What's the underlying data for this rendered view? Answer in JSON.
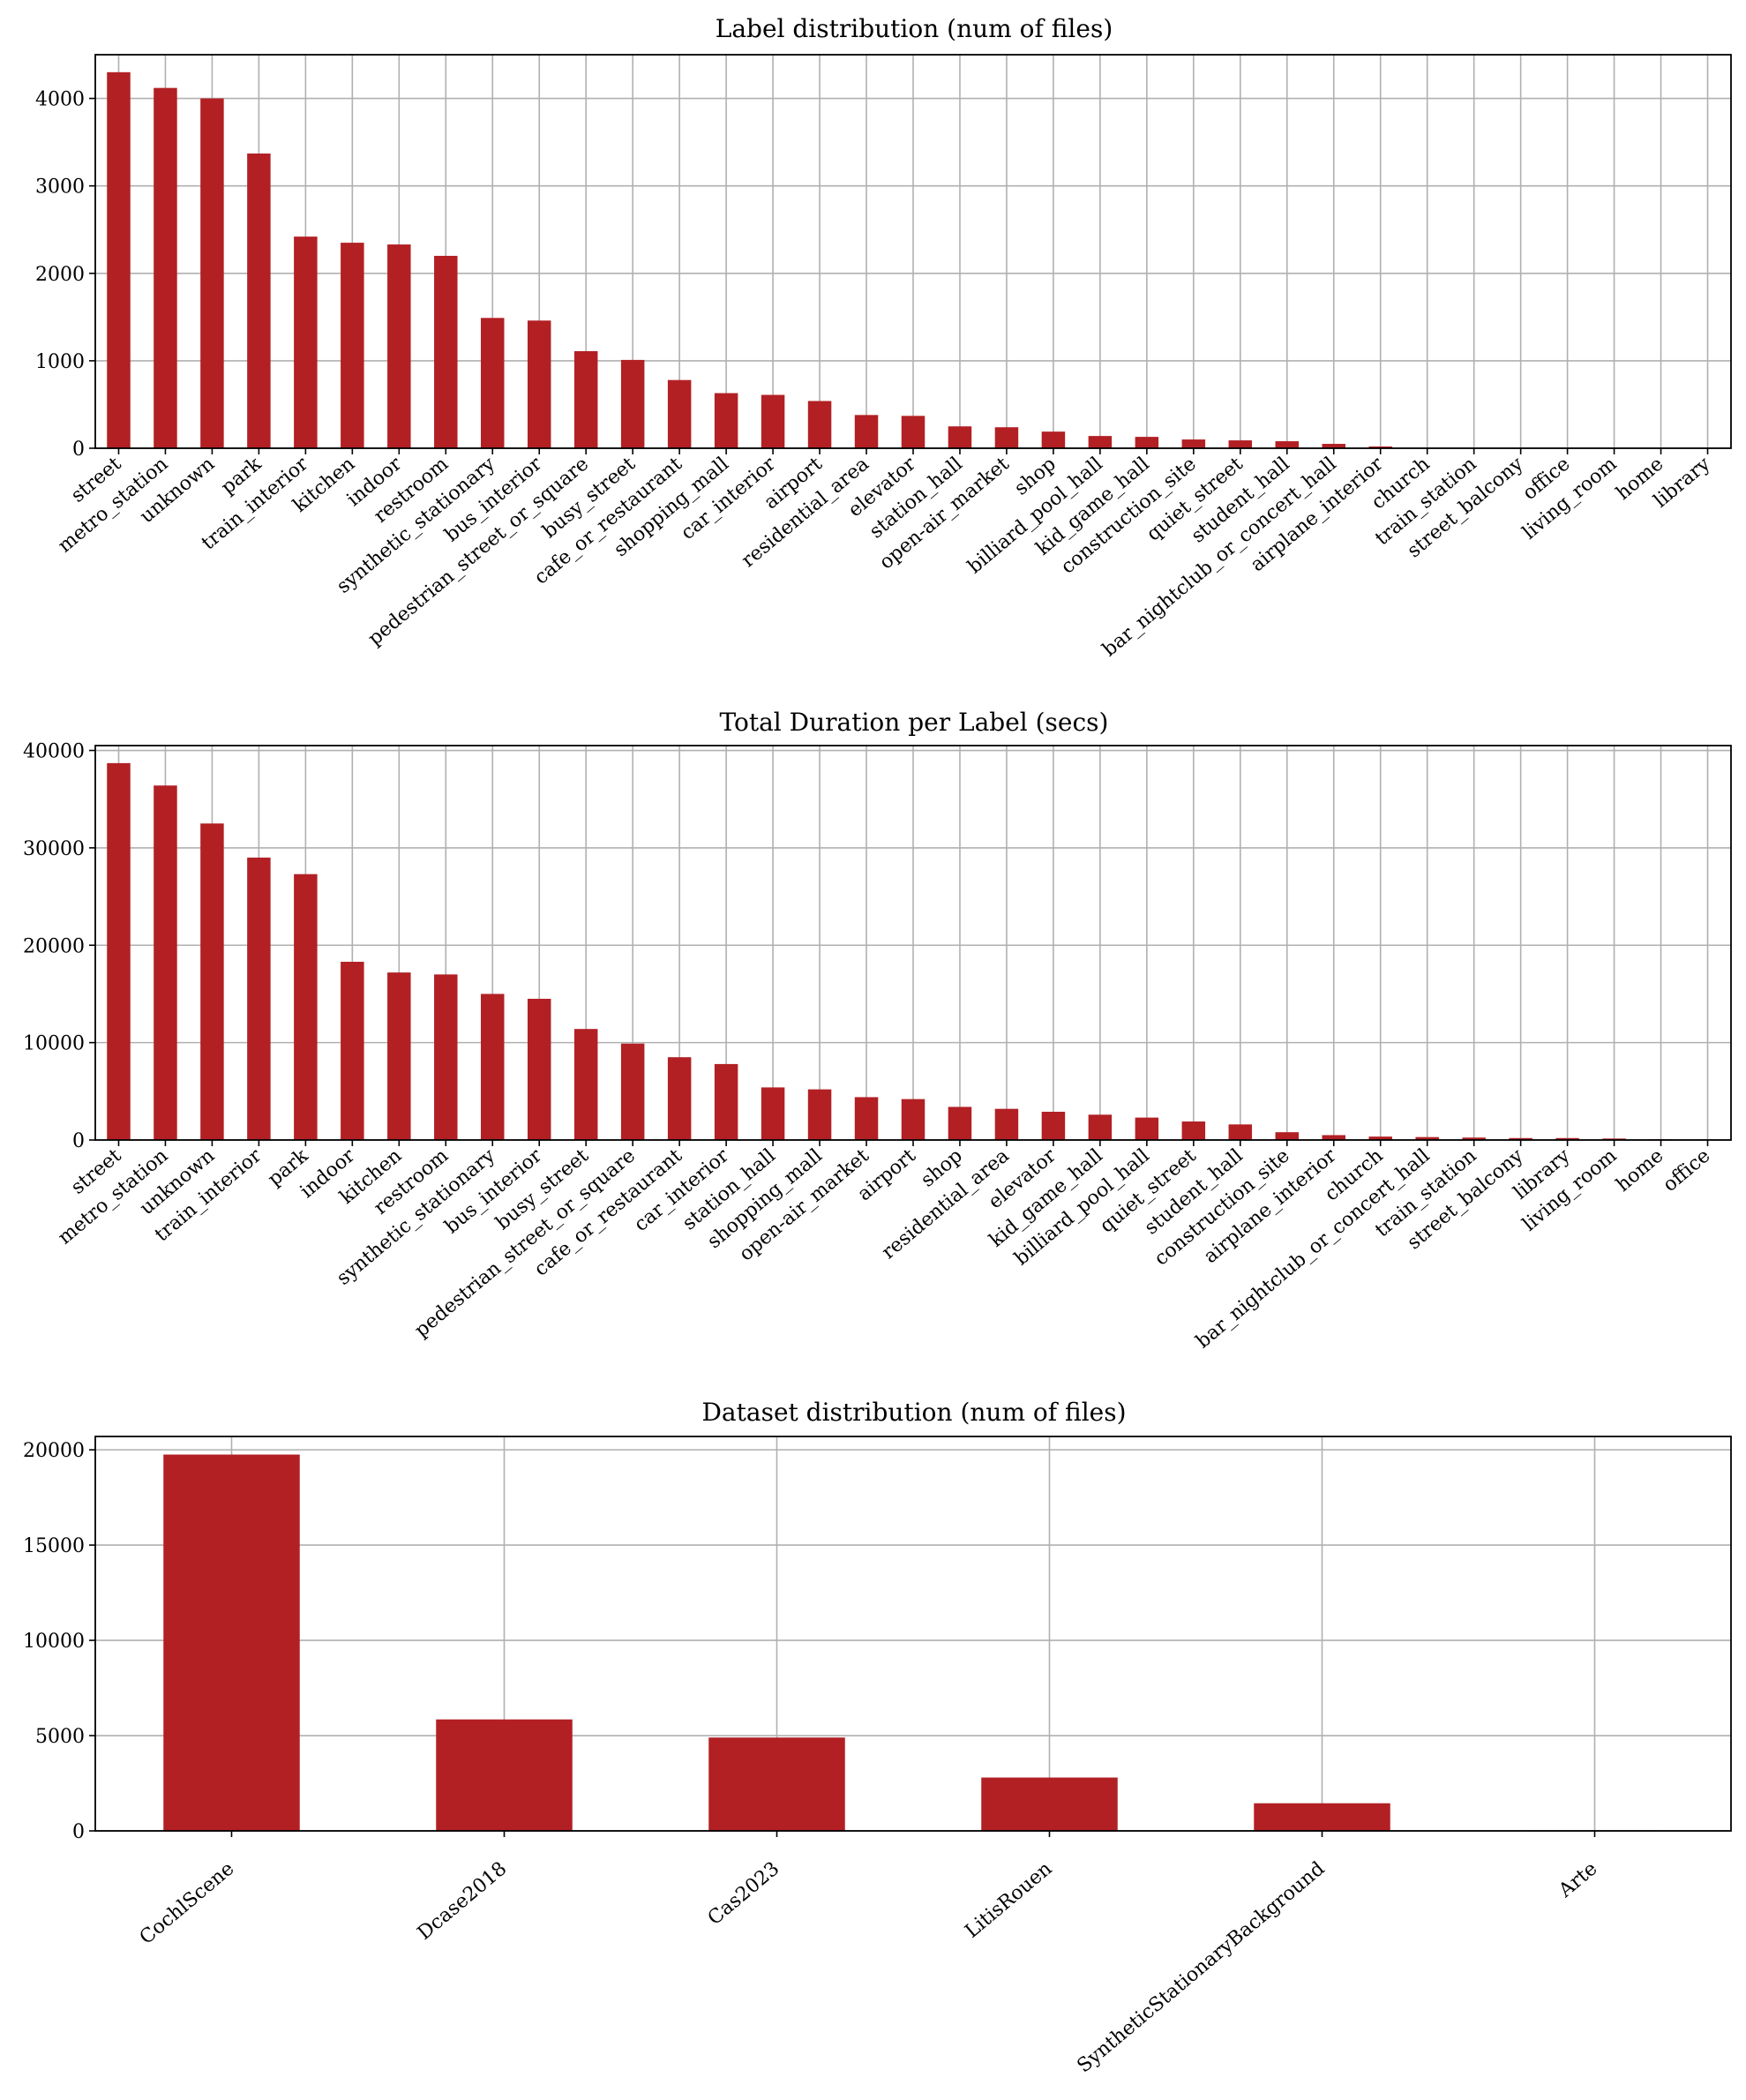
{
  "colors": {
    "bar": "#b22024",
    "grid": "#b0b0b0",
    "axis": "#000000"
  },
  "chart_data": [
    {
      "type": "bar",
      "title": "Label distribution (num of files)",
      "xlabel": "",
      "ylabel": "",
      "ylim": [
        0,
        4500
      ],
      "yticks": [
        0,
        1000,
        2000,
        3000,
        4000
      ],
      "grid": true,
      "categories": [
        "street",
        "metro_station",
        "unknown",
        "park",
        "train_interior",
        "kitchen",
        "indoor",
        "restroom",
        "synthetic_stationary",
        "bus_interior",
        "pedestrian_street_or_square",
        "busy_street",
        "cafe_or_restaurant",
        "shopping_mall",
        "car_interior",
        "airport",
        "residential_area",
        "elevator",
        "station_hall",
        "open-air_market",
        "shop",
        "billiard_pool_hall",
        "kid_game_hall",
        "construction_site",
        "quiet_street",
        "student_hall",
        "bar_nightclub_or_concert_hall",
        "airplane_interior",
        "church",
        "train_station",
        "street_balcony",
        "office",
        "living_room",
        "home",
        "library"
      ],
      "values": [
        4300,
        4120,
        4000,
        3370,
        2420,
        2350,
        2330,
        2200,
        1490,
        1460,
        1110,
        1010,
        780,
        630,
        610,
        540,
        380,
        370,
        250,
        240,
        190,
        140,
        130,
        100,
        90,
        80,
        50,
        20,
        5,
        5,
        3,
        3,
        2,
        2,
        2
      ]
    },
    {
      "type": "bar",
      "title": "Total Duration per Label (secs)",
      "xlabel": "",
      "ylabel": "",
      "ylim": [
        0,
        40500
      ],
      "yticks": [
        0,
        10000,
        20000,
        30000,
        40000
      ],
      "grid": true,
      "categories": [
        "street",
        "metro_station",
        "unknown",
        "train_interior",
        "park",
        "indoor",
        "kitchen",
        "restroom",
        "synthetic_stationary",
        "bus_interior",
        "busy_street",
        "pedestrian_street_or_square",
        "cafe_or_restaurant",
        "car_interior",
        "station_hall",
        "shopping_mall",
        "open-air_market",
        "airport",
        "shop",
        "residential_area",
        "elevator",
        "kid_game_hall",
        "billiard_pool_hall",
        "quiet_street",
        "student_hall",
        "construction_site",
        "airplane_interior",
        "church",
        "bar_nightclub_or_concert_hall",
        "train_station",
        "street_balcony",
        "library",
        "living_room",
        "home",
        "office"
      ],
      "values": [
        38700,
        36400,
        32500,
        29000,
        27300,
        18300,
        17200,
        17000,
        15000,
        14500,
        11400,
        9900,
        8500,
        7800,
        5400,
        5200,
        4400,
        4200,
        3400,
        3200,
        2900,
        2600,
        2300,
        1900,
        1600,
        800,
        500,
        350,
        300,
        250,
        200,
        200,
        150,
        80,
        60
      ]
    },
    {
      "type": "bar",
      "title": "Dataset distribution (num of files)",
      "xlabel": "",
      "ylabel": "",
      "ylim": [
        0,
        20700
      ],
      "yticks": [
        0,
        5000,
        10000,
        15000,
        20000
      ],
      "grid": true,
      "categories": [
        "CochlScene",
        "Dcase2018",
        "Cas2023",
        "LitisRouen",
        "SyntheticStationaryBackground",
        "Arte"
      ],
      "values": [
        19750,
        5850,
        4900,
        2800,
        1450,
        30
      ]
    }
  ]
}
